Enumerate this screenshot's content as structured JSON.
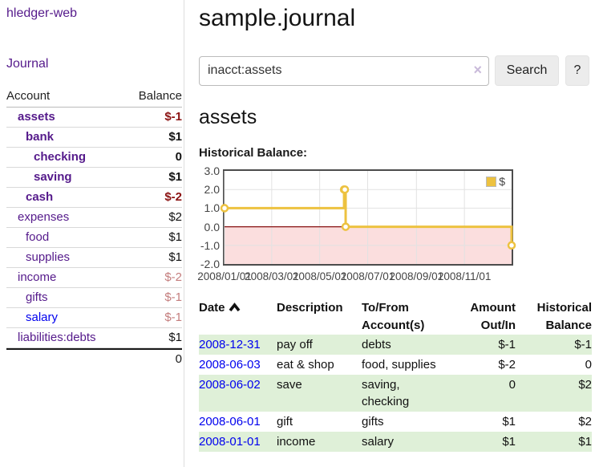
{
  "app": {
    "title": "hledger-web"
  },
  "sidebar": {
    "journal_label": "Journal",
    "accounts": {
      "header_account": "Account",
      "header_balance": "Balance",
      "rows": [
        {
          "account": "assets",
          "balance": "$-1",
          "depth": 1,
          "bold": true,
          "neg": "strong"
        },
        {
          "account": "bank",
          "balance": "$1",
          "depth": 2,
          "bold": true,
          "neg": "none"
        },
        {
          "account": "checking",
          "balance": "0",
          "depth": 3,
          "bold": true,
          "neg": "none"
        },
        {
          "account": "saving",
          "balance": "$1",
          "depth": 3,
          "bold": true,
          "neg": "none"
        },
        {
          "account": "cash",
          "balance": "$-2",
          "depth": 2,
          "bold": true,
          "neg": "strong"
        },
        {
          "account": "expenses",
          "balance": "$2",
          "depth": 1,
          "bold": false,
          "neg": "none"
        },
        {
          "account": "food",
          "balance": "$1",
          "depth": 2,
          "bold": false,
          "neg": "none"
        },
        {
          "account": "supplies",
          "balance": "$1",
          "depth": 2,
          "bold": false,
          "neg": "none"
        },
        {
          "account": "income",
          "balance": "$-2",
          "depth": 1,
          "bold": false,
          "neg": "muted"
        },
        {
          "account": "gifts",
          "balance": "$-1",
          "depth": 2,
          "bold": false,
          "neg": "muted"
        },
        {
          "account": "salary",
          "balance": "$-1",
          "depth": 2,
          "bold": false,
          "neg": "muted",
          "blue": true
        },
        {
          "account": "liabilities:debts",
          "balance": "$1",
          "depth": 1,
          "bold": false,
          "neg": "none"
        }
      ],
      "total": "0"
    }
  },
  "main": {
    "title": "sample.journal",
    "search": {
      "value": "inacct:assets",
      "clear_icon": "×",
      "button_label": "Search",
      "help_label": "?"
    },
    "account_heading": "assets",
    "chart_title": "Historical Balance:"
  },
  "chart_data": {
    "type": "line",
    "steps": true,
    "title": "Historical Balance",
    "xdomain": [
      "2008-01-01",
      "2008-12-31"
    ],
    "ylim": [
      -2.0,
      3.0
    ],
    "yticks": [
      {
        "v": 3,
        "label": "3.0"
      },
      {
        "v": 2,
        "label": "2.0"
      },
      {
        "v": 1,
        "label": "1.0"
      },
      {
        "v": 0,
        "label": "0.0"
      },
      {
        "v": -1,
        "label": "-1.0"
      },
      {
        "v": -2,
        "label": "-2.0"
      }
    ],
    "xticks": [
      {
        "date": "2008-01-01",
        "label": "2008/01/01"
      },
      {
        "date": "2008-03-01",
        "label": "2008/03/01"
      },
      {
        "date": "2008-05-01",
        "label": "2008/05/01"
      },
      {
        "date": "2008-07-01",
        "label": "2008/07/01"
      },
      {
        "date": "2008-09-01",
        "label": "2008/09/01"
      },
      {
        "date": "2008-11-01",
        "label": "2008/11/01"
      }
    ],
    "series": [
      {
        "name": "$",
        "color": "#edc240",
        "points": [
          [
            "2008-01-01",
            1
          ],
          [
            "2008-06-01",
            2
          ],
          [
            "2008-06-02",
            2
          ],
          [
            "2008-06-03",
            0
          ],
          [
            "2008-12-31",
            -1
          ]
        ]
      }
    ],
    "legend_position": "top-right",
    "grid": true,
    "negative_region_color": "#fbdede",
    "zero_line_color": "#871111"
  },
  "register": {
    "headers": [
      {
        "line1": "Date",
        "line2": "",
        "align": "left",
        "sort": "asc"
      },
      {
        "line1": "Description",
        "line2": "",
        "align": "left"
      },
      {
        "line1": "To/From",
        "line2": "Account(s)",
        "align": "left"
      },
      {
        "line1": "Amount",
        "line2": "Out/In",
        "align": "right"
      },
      {
        "line1": "Historical",
        "line2": "Balance",
        "align": "right"
      }
    ],
    "rows": [
      {
        "date": "2008-12-31",
        "description": "pay off",
        "accounts": "debts",
        "amount": "$-1",
        "amount_neg": true,
        "balance": "$-1",
        "balance_neg": true
      },
      {
        "date": "2008-06-03",
        "description": "eat & shop",
        "accounts": "food, supplies",
        "amount": "$-2",
        "amount_neg": true,
        "balance": "0",
        "balance_neg": false
      },
      {
        "date": "2008-06-02",
        "description": "save",
        "accounts": "saving,\nchecking",
        "amount": "0",
        "amount_neg": false,
        "balance": "$2",
        "balance_neg": false
      },
      {
        "date": "2008-06-01",
        "description": "gift",
        "accounts": "gifts",
        "amount": "$1",
        "amount_neg": false,
        "balance": "$2",
        "balance_neg": false
      },
      {
        "date": "2008-01-01",
        "description": "income",
        "accounts": "salary",
        "amount": "$1",
        "amount_neg": false,
        "balance": "$1",
        "balance_neg": false
      }
    ]
  },
  "colors": {
    "link_purple": "#551a8b",
    "link_blue": "#0000ee",
    "negative_red": "#8b1313",
    "negative_muted_red": "#c47d7d",
    "row_green": "#dff0d8",
    "series_gold": "#edc240",
    "negative_region_pink": "#fbdede",
    "zero_line_red": "#871111"
  }
}
